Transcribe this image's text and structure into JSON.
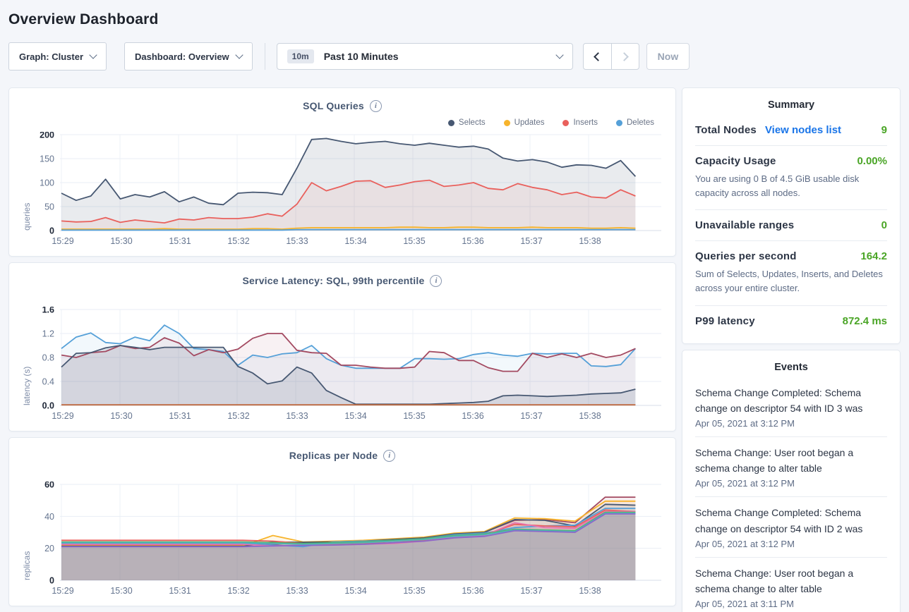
{
  "page": {
    "title": "Overview Dashboard"
  },
  "toolbar": {
    "graph_dropdown": "Graph: Cluster",
    "dashboard_dropdown": "Dashboard: Overview",
    "time_badge": "10m",
    "time_label": "Past 10 Minutes",
    "now_button": "Now"
  },
  "icons": {
    "info": "i"
  },
  "colors": {
    "accent_link": "#1a75e8",
    "value_green": "#4aa526",
    "grid": "#e9eef5",
    "grid_vertical": "#eef1f7",
    "baseline": "#d7dee8",
    "tick_text": "#64748f",
    "tick_text_bold": "#1d2636"
  },
  "summary": {
    "title": "Summary",
    "rows": [
      {
        "label": "Total Nodes",
        "link": "View nodes list",
        "value": "9"
      },
      {
        "label": "Capacity Usage",
        "value": "0.00%",
        "desc": "You are using 0 B of 4.5 GiB usable disk capacity across all nodes."
      },
      {
        "label": "Unavailable ranges",
        "value": "0"
      },
      {
        "label": "Queries per second",
        "value": "164.2",
        "desc": "Sum of Selects, Updates, Inserts, and Deletes across your entire cluster."
      },
      {
        "label": "P99 latency",
        "value": "872.4 ms"
      }
    ]
  },
  "events": {
    "title": "Events",
    "items": [
      {
        "message": "Schema Change Completed: Schema change on descriptor 54 with ID 3 was",
        "time": "Apr 05, 2021 at 3:12 PM"
      },
      {
        "message": "Schema Change: User root began a schema change to alter table",
        "time": "Apr 05, 2021 at 3:12 PM"
      },
      {
        "message": "Schema Change Completed: Schema change on descriptor 54 with ID 2 was",
        "time": "Apr 05, 2021 at 3:12 PM"
      },
      {
        "message": "Schema Change: User root began a schema change to alter table",
        "time": "Apr 05, 2021 at 3:11 PM"
      }
    ]
  },
  "chart_data": [
    {
      "type": "area",
      "name": "sql-queries",
      "title": "SQL Queries",
      "ylabel": "queries",
      "ylim": [
        0,
        200
      ],
      "y_tick_values": [
        0,
        50,
        100,
        150,
        200
      ],
      "y_tick_labels": [
        "0",
        "50",
        "100",
        "150",
        "200"
      ],
      "x_ticks": [
        "15:29",
        "15:30",
        "15:31",
        "15:32",
        "15:33",
        "15:34",
        "15:35",
        "15:36",
        "15:37",
        "15:38"
      ],
      "x_domain_minutes": 10,
      "data_end_minutes": 9.8,
      "legend": true,
      "series": [
        {
          "name": "Selects",
          "color": "#475872",
          "fill_opacity": 0.12,
          "values": [
            78,
            63,
            72,
            107,
            66,
            75,
            70,
            81,
            60,
            70,
            57,
            54,
            78,
            80,
            79,
            75,
            130,
            190,
            192,
            186,
            181,
            184,
            186,
            181,
            178,
            182,
            178,
            174,
            176,
            170,
            151,
            145,
            148,
            143,
            132,
            137,
            136,
            130,
            146,
            113
          ]
        },
        {
          "name": "Updates",
          "color": "#f7b42c",
          "fill_opacity": 0.07,
          "values": [
            3,
            3,
            3,
            3,
            3,
            3,
            3,
            4,
            3,
            3,
            3,
            3,
            3,
            4,
            4,
            3,
            5,
            6,
            6,
            6,
            6,
            6,
            6,
            7,
            7,
            6,
            6,
            7,
            7,
            6,
            6,
            6,
            7,
            6,
            6,
            6,
            5,
            5,
            6,
            5
          ]
        },
        {
          "name": "Inserts",
          "color": "#e9605c",
          "fill_opacity": 0.08,
          "values": [
            20,
            18,
            19,
            27,
            17,
            22,
            19,
            16,
            24,
            22,
            27,
            25,
            25,
            28,
            35,
            30,
            55,
            100,
            83,
            92,
            103,
            104,
            90,
            95,
            102,
            105,
            92,
            95,
            100,
            88,
            85,
            98,
            90,
            85,
            75,
            80,
            70,
            68,
            85,
            72
          ]
        },
        {
          "name": "Deletes",
          "color": "#55a0d8",
          "fill_opacity": 0.07,
          "values": [
            1,
            1,
            1,
            1,
            1,
            1,
            1,
            1,
            1,
            1,
            1,
            1,
            1,
            1,
            1,
            1,
            2,
            2,
            2,
            2,
            2,
            2,
            2,
            2,
            2,
            2,
            2,
            2,
            2,
            2,
            2,
            2,
            2,
            2,
            2,
            2,
            2,
            2,
            2,
            2
          ]
        }
      ]
    },
    {
      "type": "area",
      "name": "service-latency",
      "title": "Service Latency: SQL, 99th percentile",
      "ylabel": "latency (s)",
      "ylim": [
        0,
        1.6
      ],
      "y_tick_values": [
        0,
        0.4,
        0.8,
        1.2,
        1.6
      ],
      "y_tick_labels": [
        "0.0",
        "0.4",
        "0.8",
        "1.2",
        "1.6"
      ],
      "x_ticks": [
        "15:29",
        "15:30",
        "15:31",
        "15:32",
        "15:33",
        "15:34",
        "15:35",
        "15:36",
        "15:37",
        "15:38"
      ],
      "x_domain_minutes": 10,
      "data_end_minutes": 9.8,
      "legend": false,
      "series": [
        {
          "color": "#55a0d8",
          "fill_opacity": 0.08,
          "values": [
            0.95,
            1.14,
            1.21,
            1.05,
            1.03,
            1.14,
            1.08,
            1.34,
            1.2,
            0.95,
            0.93,
            0.9,
            0.67,
            0.84,
            0.8,
            0.86,
            0.88,
            1.0,
            0.78,
            0.67,
            0.62,
            0.62,
            0.62,
            0.62,
            0.78,
            0.78,
            0.77,
            0.78,
            0.85,
            0.88,
            0.84,
            0.82,
            0.87,
            0.86,
            0.87,
            0.87,
            0.66,
            0.65,
            0.68,
            0.95
          ]
        },
        {
          "color": "#a34a61",
          "fill_opacity": 0.08,
          "values": [
            0.84,
            0.8,
            0.88,
            0.9,
            1.0,
            0.95,
            0.97,
            1.13,
            1.04,
            0.83,
            0.93,
            0.88,
            0.94,
            1.12,
            1.2,
            1.2,
            0.92,
            0.88,
            0.87,
            0.67,
            0.67,
            0.64,
            0.62,
            0.62,
            0.64,
            0.9,
            0.88,
            0.75,
            0.75,
            0.63,
            0.57,
            0.57,
            0.87,
            0.8,
            0.86,
            0.8,
            0.87,
            0.8,
            0.84,
            0.95
          ]
        },
        {
          "color": "#475872",
          "fill_opacity": 0.14,
          "values": [
            0.64,
            0.87,
            0.88,
            0.96,
            1.0,
            0.97,
            0.93,
            0.97,
            0.97,
            0.97,
            0.97,
            0.97,
            0.65,
            0.54,
            0.36,
            0.41,
            0.64,
            0.54,
            0.25,
            0.13,
            0.02,
            0.02,
            0.02,
            0.02,
            0.02,
            0.02,
            0.03,
            0.04,
            0.05,
            0.07,
            0.16,
            0.17,
            0.16,
            0.15,
            0.16,
            0.17,
            0.19,
            0.2,
            0.21,
            0.27
          ]
        },
        {
          "color": "#bf6a40",
          "fill_opacity": 0,
          "values": [
            0.01,
            0.01,
            0.01,
            0.01,
            0.01,
            0.01,
            0.01,
            0.01,
            0.01,
            0.01,
            0.01,
            0.01,
            0.01,
            0.01,
            0.01,
            0.01,
            0.01,
            0.01,
            0.01,
            0.01,
            0.01,
            0.01,
            0.01,
            0.01,
            0.01,
            0.01,
            0.01,
            0.01,
            0.01,
            0.01,
            0.01,
            0.01,
            0.01,
            0.01,
            0.01,
            0.01,
            0.01,
            0.01,
            0.01,
            0.01
          ]
        }
      ]
    },
    {
      "type": "area",
      "name": "replicas-per-node",
      "title": "Replicas per Node",
      "ylabel": "replicas",
      "ylim": [
        0,
        60
      ],
      "y_tick_values": [
        0,
        20,
        40,
        60
      ],
      "y_tick_labels": [
        "0",
        "20",
        "40",
        "60"
      ],
      "x_ticks": [
        "15:29",
        "15:30",
        "15:31",
        "15:32",
        "15:33",
        "15:34",
        "15:35",
        "15:36",
        "15:37",
        "15:38"
      ],
      "x_domain_minutes": 10,
      "data_end_minutes": 9.8,
      "legend": false,
      "series": [
        {
          "color": "#a34a61",
          "fill_opacity": 0.1,
          "values": [
            22,
            22,
            22,
            22,
            22,
            22,
            22,
            22.5,
            23.5,
            24,
            24.5,
            25,
            26.5,
            29,
            30,
            37.5,
            38,
            36,
            52,
            52
          ]
        },
        {
          "color": "#f7b42c",
          "fill_opacity": 0.1,
          "values": [
            21.5,
            21.5,
            21.5,
            21.5,
            21.5,
            21.5,
            21.5,
            28,
            24,
            24.5,
            25,
            26,
            27,
            29.5,
            30.5,
            39,
            38.5,
            37,
            49.5,
            49.5
          ]
        },
        {
          "color": "#475872",
          "fill_opacity": 0.1,
          "values": [
            21.2,
            21.2,
            21.2,
            21.2,
            21.2,
            21.2,
            21.2,
            24,
            23.8,
            24,
            24.5,
            25.5,
            26.5,
            29,
            30,
            38,
            37.5,
            34,
            47.5,
            47
          ]
        },
        {
          "color": "#55a0d8",
          "fill_opacity": 0.1,
          "values": [
            23,
            23,
            23,
            23,
            23,
            23,
            23,
            22,
            21,
            24,
            24.5,
            25,
            26,
            28.5,
            29.5,
            33,
            34,
            34.5,
            45,
            45
          ]
        },
        {
          "color": "#e9605c",
          "fill_opacity": 0.1,
          "values": [
            25,
            25,
            25,
            25,
            25,
            25,
            25,
            24.5,
            23,
            22.5,
            23,
            24.5,
            25,
            27,
            28.5,
            35,
            34,
            33.5,
            44,
            43
          ]
        },
        {
          "color": "#e873ad",
          "fill_opacity": 0.1,
          "values": [
            22.5,
            22.5,
            22.5,
            22.5,
            22.5,
            22.5,
            22.5,
            21.5,
            22,
            22,
            22.5,
            23,
            24.5,
            27,
            28,
            36,
            33,
            32.5,
            43,
            43
          ]
        },
        {
          "color": "#55b169",
          "fill_opacity": 0.1,
          "values": [
            24,
            24,
            24,
            24,
            24,
            24,
            24,
            23.5,
            23,
            23.5,
            24,
            25,
            26,
            28,
            29,
            32,
            31.5,
            31,
            42.5,
            42.5
          ]
        },
        {
          "color": "#4fb5ba",
          "fill_opacity": 0.1,
          "values": [
            23.5,
            23.5,
            23.5,
            23.5,
            23.5,
            23.5,
            23.5,
            23,
            22.5,
            23,
            23.5,
            24.5,
            25.5,
            27.5,
            28.5,
            31.5,
            31,
            30.5,
            42,
            42
          ]
        },
        {
          "color": "#8a68c9",
          "fill_opacity": 0.1,
          "values": [
            21,
            21,
            21,
            21,
            21,
            21,
            21,
            21.5,
            21.8,
            22,
            22.5,
            23.5,
            24.5,
            26.5,
            27.5,
            31,
            30.5,
            30,
            41.5,
            41.5
          ]
        }
      ]
    }
  ]
}
